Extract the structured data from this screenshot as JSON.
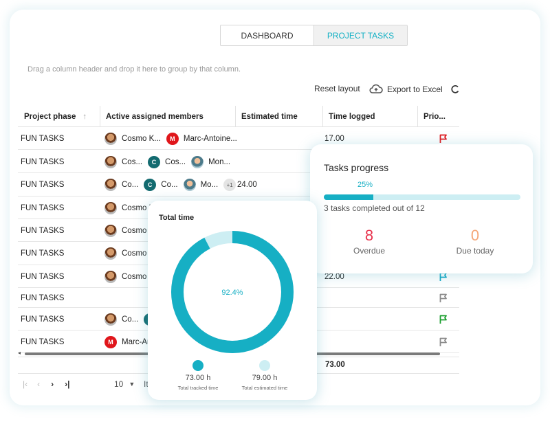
{
  "tabs": [
    {
      "label": "DASHBOARD",
      "active": false
    },
    {
      "label": "PROJECT TASKS",
      "active": true
    }
  ],
  "group_hint": "Drag a column header and drop it here to group by that column.",
  "toolbar": {
    "reset_label": "Reset layout",
    "export_label": "Export to Excel"
  },
  "columns": [
    "Project phase",
    "Active assigned members",
    "Estimated time",
    "Time logged",
    "Prio..."
  ],
  "rows": [
    {
      "phase": "FUN TASKS",
      "time": "17.00",
      "members": [
        {
          "type": "face",
          "name": "Cosmo K..."
        },
        {
          "type": "red",
          "initial": "M",
          "name": "Marc-Antoine..."
        }
      ],
      "flag": "#e0161b"
    },
    {
      "phase": "FUN TASKS",
      "time": "",
      "members": [
        {
          "type": "face",
          "name": "Cos..."
        },
        {
          "type": "teal",
          "initial": "C",
          "name": "Cos..."
        },
        {
          "type": "photo",
          "name": "Mon..."
        }
      ],
      "flag": ""
    },
    {
      "phase": "FUN TASKS",
      "time": "24.00",
      "members": [
        {
          "type": "face",
          "name": "Co..."
        },
        {
          "type": "teal",
          "initial": "C",
          "name": "Co..."
        },
        {
          "type": "photo",
          "name": "Mo..."
        },
        {
          "type": "more",
          "initial": "+1",
          "name": ""
        }
      ],
      "flag": ""
    },
    {
      "phase": "FUN TASKS",
      "time": "",
      "members": [
        {
          "type": "face",
          "name": "Cosmo K"
        }
      ],
      "flag": ""
    },
    {
      "phase": "FUN TASKS",
      "time": "",
      "members": [
        {
          "type": "face",
          "name": "Cosmo"
        }
      ],
      "flag": ""
    },
    {
      "phase": "FUN TASKS",
      "time": "",
      "members": [
        {
          "type": "face",
          "name": "Cosmo"
        }
      ],
      "flag": ""
    },
    {
      "phase": "FUN TASKS",
      "time": "22.00",
      "members": [
        {
          "type": "face",
          "name": "Cosmo"
        }
      ],
      "flag": "#12a7c3"
    },
    {
      "phase": "FUN TASKS",
      "time": "",
      "members": [],
      "flag": "#8a8a8a"
    },
    {
      "phase": "FUN TASKS",
      "time": "",
      "members": [
        {
          "type": "face",
          "name": "Co..."
        },
        {
          "type": "teal",
          "initial": "C",
          "name": ""
        }
      ],
      "flag": "#1a9e2e"
    },
    {
      "phase": "FUN TASKS",
      "time": "",
      "members": [
        {
          "type": "red",
          "initial": "M",
          "name": "Marc-Ar"
        }
      ],
      "flag": "#8a8a8a"
    }
  ],
  "total_time_logged": "73.00",
  "pager": {
    "page_size": "10",
    "items_label": "It"
  },
  "tasks_progress": {
    "title": "Tasks progress",
    "percent_label": "25%",
    "percent": 0.25,
    "completed_label": "3 tasks completed out of 12",
    "overdue_value": "8",
    "overdue_label": "Overdue",
    "due_today_value": "0",
    "due_today_label": "Due today",
    "colors": {
      "overdue": "#e8344e",
      "due_today": "#f5a87a",
      "bar": "#16afc4",
      "bar_track": "#cdeef3"
    }
  },
  "total_time": {
    "title": "Total time",
    "center_label": "92.4%",
    "tracked_fraction": 0.924,
    "legend": [
      {
        "value": "73.00 h",
        "label": "Total tracked time",
        "color": "#16afc4"
      },
      {
        "value": "79.00 h",
        "label": "Total estimated time",
        "color": "#cdeef3"
      }
    ]
  }
}
